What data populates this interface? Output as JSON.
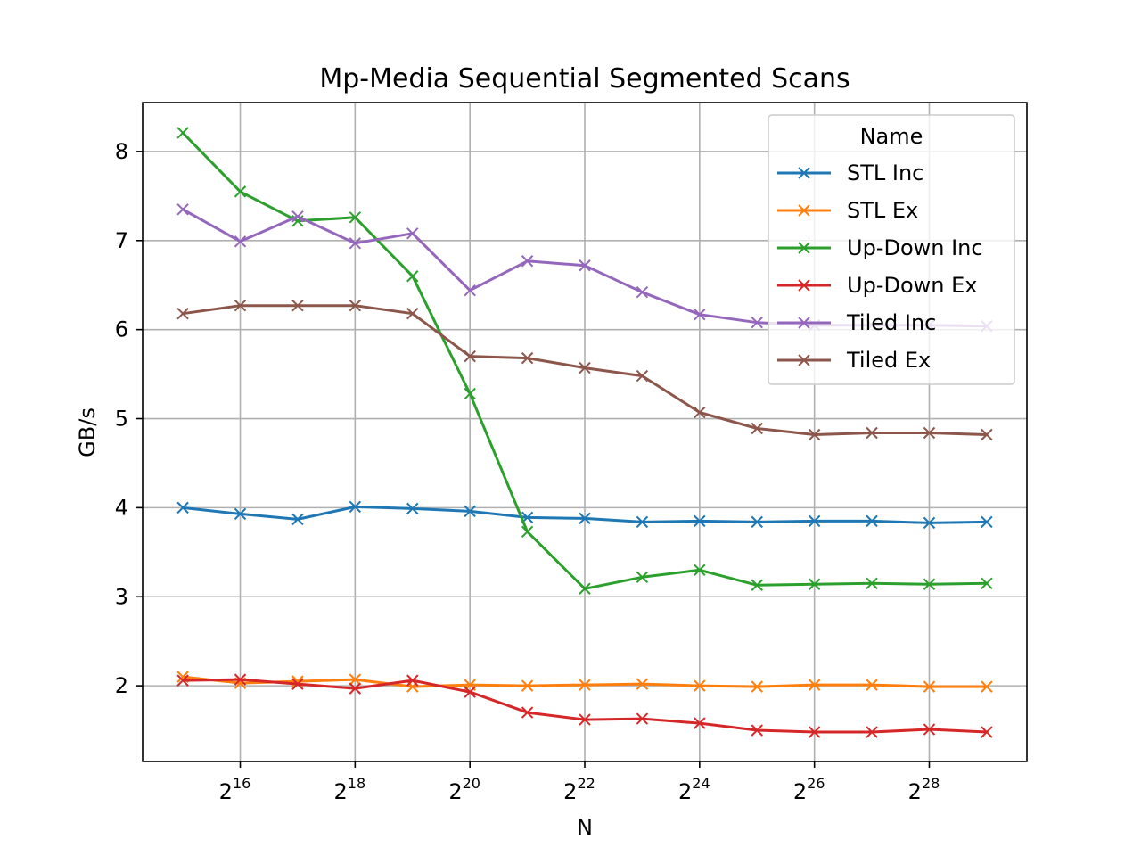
{
  "chart_data": {
    "type": "line",
    "title": "Mp-Media Sequential Segmented Scans",
    "xlabel": "N",
    "ylabel": "GB/s",
    "x_scale": "log2",
    "x": [
      32768,
      65536,
      131072,
      262144,
      524288,
      1048576,
      2097152,
      4194304,
      8388608,
      16777216,
      33554432,
      67108864,
      134217728,
      268435456,
      536870912
    ],
    "xticks": [
      {
        "value": 65536,
        "base": "2",
        "exp": "16"
      },
      {
        "value": 262144,
        "base": "2",
        "exp": "18"
      },
      {
        "value": 1048576,
        "base": "2",
        "exp": "20"
      },
      {
        "value": 4194304,
        "base": "2",
        "exp": "22"
      },
      {
        "value": 16777216,
        "base": "2",
        "exp": "24"
      },
      {
        "value": 67108864,
        "base": "2",
        "exp": "26"
      },
      {
        "value": 268435456,
        "base": "2",
        "exp": "28"
      }
    ],
    "ylim": [
      1.15,
      8.55
    ],
    "yticks": [
      "2",
      "3",
      "4",
      "5",
      "6",
      "7",
      "8"
    ],
    "grid": true,
    "legend": {
      "title": "Name",
      "placement": "top-right"
    },
    "marker": "x",
    "series": [
      {
        "name": "STL Inc",
        "color": "#1f77b4",
        "values": [
          4.0,
          3.93,
          3.87,
          4.01,
          3.99,
          3.96,
          3.89,
          3.88,
          3.84,
          3.85,
          3.84,
          3.85,
          3.85,
          3.83,
          3.84
        ]
      },
      {
        "name": "STL Ex",
        "color": "#ff7f0e",
        "values": [
          2.1,
          2.03,
          2.05,
          2.07,
          1.99,
          2.01,
          2.0,
          2.01,
          2.02,
          2.0,
          1.99,
          2.01,
          2.01,
          1.99,
          1.99
        ]
      },
      {
        "name": "Up-Down Inc",
        "color": "#2ca02c",
        "values": [
          8.21,
          7.55,
          7.22,
          7.26,
          6.6,
          5.28,
          3.73,
          3.09,
          3.22,
          3.3,
          3.13,
          3.14,
          3.15,
          3.14,
          3.15
        ]
      },
      {
        "name": "Up-Down Ex",
        "color": "#d62728",
        "values": [
          2.06,
          2.07,
          2.02,
          1.97,
          2.06,
          1.93,
          1.7,
          1.62,
          1.63,
          1.58,
          1.5,
          1.48,
          1.48,
          1.51,
          1.48
        ]
      },
      {
        "name": "Tiled Inc",
        "color": "#9467bd",
        "values": [
          7.35,
          6.99,
          7.27,
          6.97,
          7.08,
          6.44,
          6.77,
          6.72,
          6.42,
          6.17,
          6.08,
          6.05,
          6.05,
          6.05,
          6.04
        ]
      },
      {
        "name": "Tiled Ex",
        "color": "#8c564b",
        "values": [
          6.18,
          6.27,
          6.27,
          6.27,
          6.18,
          5.7,
          5.68,
          5.57,
          5.48,
          5.07,
          4.89,
          4.82,
          4.84,
          4.84,
          4.82
        ]
      }
    ]
  }
}
